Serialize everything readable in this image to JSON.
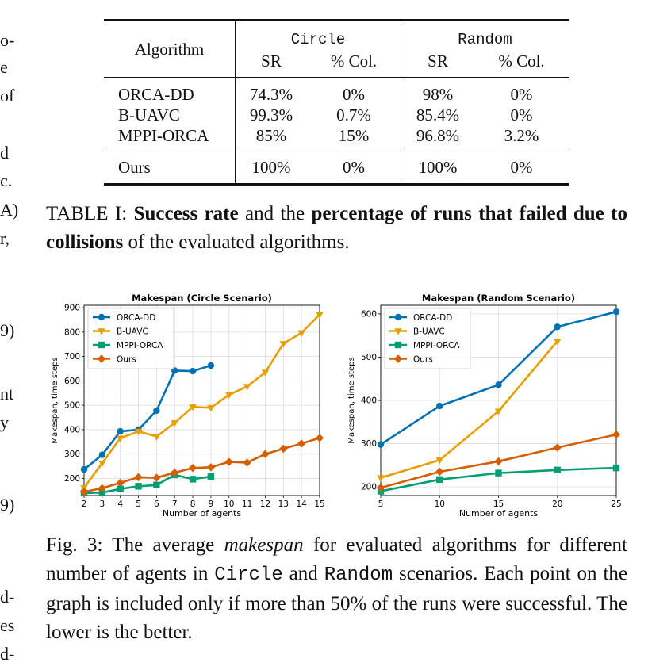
{
  "left_fragments": [
    "o-",
    "e",
    "of",
    "d",
    "c.",
    "A)",
    "r,",
    "9)",
    "nt",
    "y",
    "9)",
    "d-",
    "es",
    "d-"
  ],
  "right_fragments": [],
  "table": {
    "header_algorithm": "Algorithm",
    "group_circle": "Circle",
    "group_random": "Random",
    "sr": "SR",
    "col": "% Col.",
    "rows": [
      {
        "name": "ORCA-DD",
        "c_sr": "74.3%",
        "c_col": "0%",
        "r_sr": "98%",
        "r_col": "0%"
      },
      {
        "name": "B-UAVC",
        "c_sr": "99.3%",
        "c_col": "0.7%",
        "r_sr": "85.4%",
        "r_col": "0%"
      },
      {
        "name": "MPPI-ORCA",
        "c_sr": "85%",
        "c_col": "15%",
        "r_sr": "96.8%",
        "r_col": "3.2%"
      }
    ],
    "ours": {
      "name": "Ours",
      "c_sr": "100%",
      "c_col": "0%",
      "r_sr": "100%",
      "r_col": "0%"
    }
  },
  "table_caption": {
    "prefix": "TABLE I: ",
    "bold1": "Success rate",
    "mid": " and the ",
    "bold2": "percentage of runs that failed due to collisions",
    "suffix": " of the evaluated algorithms."
  },
  "fig_caption": {
    "prefix": "Fig. 3: The average ",
    "italic": "makespan",
    "mid1": " for evaluated algorithms for different number of agents in ",
    "mono1": "Circle",
    "mid2": " and ",
    "mono2": "Random",
    "suffix": " scenarios. Each point on the graph is included only if more than 50% of the runs were successful. The lower is the better."
  },
  "chart_data": [
    {
      "type": "line",
      "title": "Makespan (Circle Scenario)",
      "xlabel": "Number of agents",
      "ylabel": "Makespan, time steps",
      "xlim": [
        2,
        15
      ],
      "ylim": [
        130,
        910
      ],
      "xticks": [
        2,
        3,
        4,
        5,
        6,
        7,
        8,
        9,
        10,
        11,
        12,
        13,
        14,
        15
      ],
      "yticks": [
        200,
        300,
        400,
        500,
        600,
        700,
        800,
        900
      ],
      "grid": true,
      "legend": "top-left",
      "series": [
        {
          "name": "ORCA-DD",
          "color": "#0072b2",
          "marker": "circle",
          "x": [
            2,
            3,
            4,
            5,
            6,
            7,
            8,
            9
          ],
          "y": [
            237,
            297,
            393,
            400,
            478,
            642,
            640,
            663
          ]
        },
        {
          "name": "B-UAVC",
          "color": "#e69f00",
          "marker": "triangle-down",
          "x": [
            2,
            3,
            4,
            5,
            6,
            7,
            8,
            9,
            10,
            11,
            12,
            13,
            14,
            15
          ],
          "y": [
            162,
            263,
            365,
            393,
            372,
            428,
            493,
            490,
            543,
            577,
            635,
            753,
            797,
            872
          ]
        },
        {
          "name": "MPPI-ORCA",
          "color": "#009e73",
          "marker": "square",
          "x": [
            2,
            3,
            4,
            5,
            6,
            7,
            8,
            9
          ],
          "y": [
            140,
            142,
            157,
            168,
            173,
            215,
            197,
            208
          ]
        },
        {
          "name": "Ours",
          "color": "#d55e00",
          "marker": "diamond",
          "x": [
            2,
            3,
            4,
            5,
            6,
            7,
            8,
            9,
            10,
            11,
            12,
            13,
            14,
            15
          ],
          "y": [
            145,
            160,
            182,
            205,
            203,
            224,
            243,
            246,
            268,
            265,
            300,
            322,
            343,
            366
          ]
        }
      ]
    },
    {
      "type": "line",
      "title": "Makespan (Random Scenario)",
      "xlabel": "Number of agents",
      "ylabel": "Makespan, time steps",
      "xlim": [
        5,
        25
      ],
      "ylim": [
        180,
        620
      ],
      "xticks": [
        5,
        10,
        15,
        20,
        25
      ],
      "yticks": [
        200,
        300,
        400,
        500,
        600
      ],
      "grid": true,
      "legend": "top-left",
      "series": [
        {
          "name": "ORCA-DD",
          "color": "#0072b2",
          "marker": "circle",
          "x": [
            5,
            10,
            15,
            20,
            25
          ],
          "y": [
            298,
            387,
            436,
            570,
            605
          ]
        },
        {
          "name": "B-UAVC",
          "color": "#e69f00",
          "marker": "triangle-down",
          "x": [
            5,
            10,
            15,
            20
          ],
          "y": [
            221,
            262,
            375,
            537
          ]
        },
        {
          "name": "MPPI-ORCA",
          "color": "#009e73",
          "marker": "square",
          "x": [
            5,
            10,
            15,
            20,
            25
          ],
          "y": [
            190,
            217,
            232,
            239,
            244
          ]
        },
        {
          "name": "Ours",
          "color": "#d55e00",
          "marker": "diamond",
          "x": [
            5,
            10,
            15,
            20,
            25
          ],
          "y": [
            198,
            235,
            259,
            291,
            321
          ]
        }
      ]
    }
  ]
}
